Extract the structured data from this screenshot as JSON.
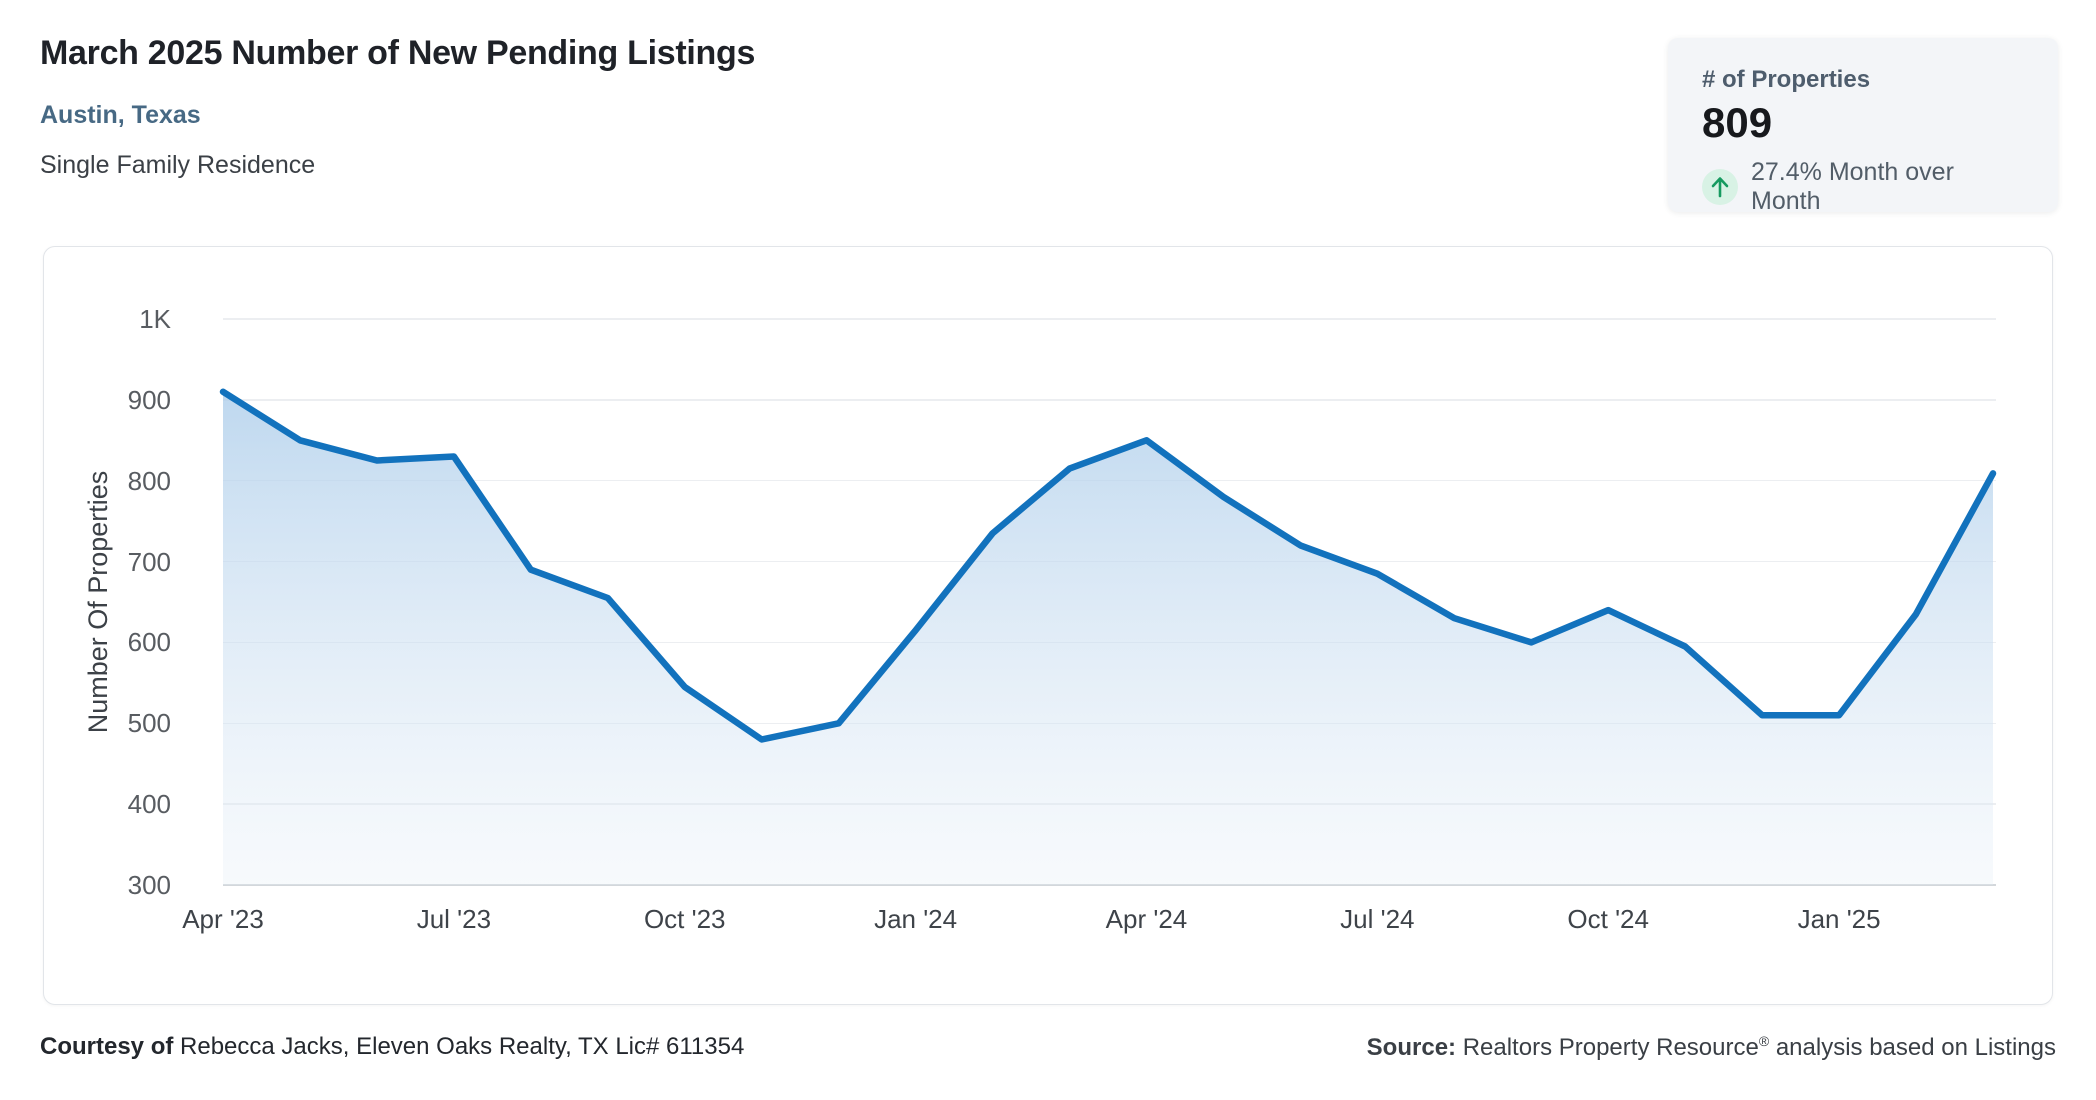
{
  "header": {
    "title": "March 2025 Number of New Pending Listings",
    "location": "Austin, Texas",
    "property_type": "Single Family Residence"
  },
  "stat_card": {
    "label": "# of Properties",
    "value": "809",
    "change_text": "27.4% Month over Month",
    "trend": "up",
    "trend_color": "#169a60",
    "trend_bg_color": "#d8f2e5"
  },
  "chart_data": {
    "type": "area",
    "title": "March 2025 Number of New Pending Listings",
    "xlabel": "",
    "ylabel": "Number Of Properties",
    "ylim": [
      300,
      1000
    ],
    "grid": true,
    "legend": false,
    "x": [
      "Apr '23",
      "May '23",
      "Jun '23",
      "Jul '23",
      "Aug '23",
      "Sep '23",
      "Oct '23",
      "Nov '23",
      "Dec '23",
      "Jan '24",
      "Feb '24",
      "Mar '24",
      "Apr '24",
      "May '24",
      "Jun '24",
      "Jul '24",
      "Aug '24",
      "Sep '24",
      "Oct '24",
      "Nov '24",
      "Dec '24",
      "Jan '25",
      "Feb '25",
      "Mar '25"
    ],
    "values": [
      910,
      850,
      825,
      830,
      690,
      655,
      545,
      480,
      500,
      615,
      735,
      815,
      850,
      780,
      720,
      685,
      630,
      600,
      640,
      595,
      510,
      510,
      635,
      809
    ],
    "xticks": [
      {
        "index": 0,
        "label": "Apr '23"
      },
      {
        "index": 3,
        "label": "Jul '23"
      },
      {
        "index": 6,
        "label": "Oct '23"
      },
      {
        "index": 9,
        "label": "Jan '24"
      },
      {
        "index": 12,
        "label": "Apr '24"
      },
      {
        "index": 15,
        "label": "Jul '24"
      },
      {
        "index": 18,
        "label": "Oct '24"
      },
      {
        "index": 21,
        "label": "Jan '25"
      }
    ],
    "yticks": [
      {
        "value": 1000,
        "label": "1K"
      },
      {
        "value": 900,
        "label": "900"
      },
      {
        "value": 800,
        "label": "800"
      },
      {
        "value": 700,
        "label": "700"
      },
      {
        "value": 600,
        "label": "600"
      },
      {
        "value": 500,
        "label": "500"
      },
      {
        "value": 400,
        "label": "400"
      },
      {
        "value": 300,
        "label": "300"
      }
    ],
    "line_color": "#1272bd",
    "fill_color_top": "rgba(174,206,235,0.80)",
    "fill_color_bottom": "rgba(228,237,246,0.30)"
  },
  "footer": {
    "courtesy_bold": "Courtesy of",
    "courtesy_text": " Rebecca Jacks, Eleven Oaks Realty, TX Lic# 611354",
    "source_bold": "Source:",
    "source_name": " Realtors Property Resource",
    "source_reg": "®",
    "source_rest": " analysis based on Listings"
  }
}
